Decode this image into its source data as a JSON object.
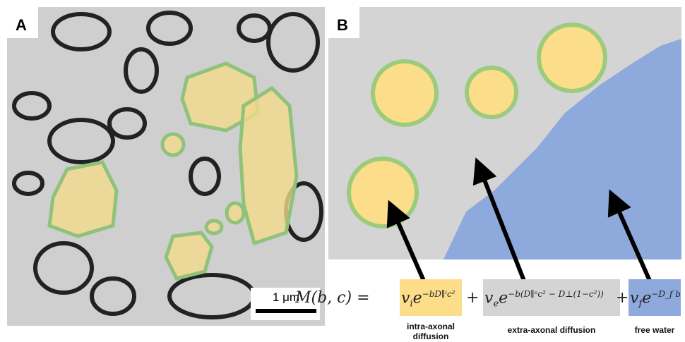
{
  "panels": [
    {
      "label": "A",
      "scale_bar": "1 μm"
    },
    {
      "label": "B"
    }
  ],
  "formula": {
    "lhs": "M(b, c) =",
    "terms": [
      {
        "v": "v",
        "sub": "i",
        "e": "e",
        "exp": "−bD∥ⁱc²",
        "caption": "intra-axonal diffusion"
      },
      {
        "v": "v",
        "sub": "e",
        "e": "e",
        "exp": "−b(D∥ᵉc² − D⊥(1−c²))",
        "caption": "extra-axonal diffusion"
      },
      {
        "v": "v",
        "sub": "f",
        "e": "e",
        "exp": "−D_f b",
        "caption": "free water"
      }
    ],
    "operators": [
      "+",
      "+"
    ]
  }
}
